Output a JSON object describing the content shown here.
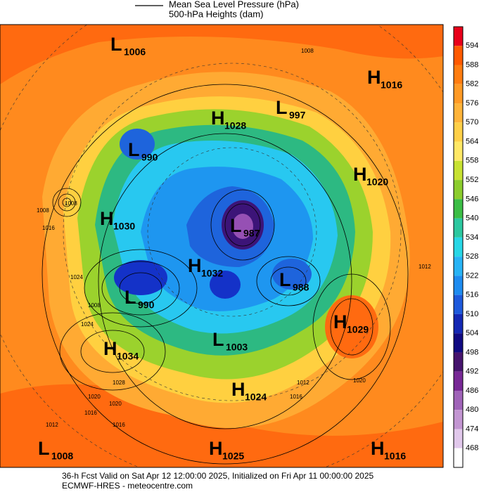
{
  "legend": {
    "pressure": "Mean Sea Level Pressure (hPa)",
    "heights": "500-hPa Heights (dam)"
  },
  "colorbar": {
    "labels": [
      594,
      588,
      582,
      576,
      570,
      564,
      558,
      552,
      546,
      540,
      534,
      528,
      522,
      516,
      510,
      504,
      498,
      492,
      486,
      480,
      474,
      468
    ]
  },
  "centers": [
    {
      "type": "L",
      "value": 1006
    },
    {
      "type": "L",
      "value": 997
    },
    {
      "type": "H",
      "value": 1028
    },
    {
      "type": "H",
      "value": 1016
    },
    {
      "type": "L",
      "value": 990
    },
    {
      "type": "H",
      "value": 1020
    },
    {
      "type": "H",
      "value": 1030
    },
    {
      "type": "L",
      "value": 987
    },
    {
      "type": "H",
      "value": 1032
    },
    {
      "type": "L",
      "value": 988
    },
    {
      "type": "L",
      "value": 990
    },
    {
      "type": "H",
      "value": 1029
    },
    {
      "type": "L",
      "value": 1003
    },
    {
      "type": "H",
      "value": 1034
    },
    {
      "type": "H",
      "value": 1024
    },
    {
      "type": "L",
      "value": 1008
    },
    {
      "type": "H",
      "value": 1025
    },
    {
      "type": "H",
      "value": 1016
    }
  ],
  "contour_labels": [
    "1008",
    "1016",
    "1024",
    "1008",
    "1024",
    "1028",
    "1020",
    "1020",
    "1016",
    "1012",
    "1016",
    "1020",
    "1012",
    "1016",
    "1008",
    "1012",
    "1008"
  ],
  "footer": {
    "line1": "36-h Fcst Valid on Sat Apr 12 12:00:00 2025, Initialized on Fri Apr 11 00:00:00 2025",
    "line2": "ECMWF-HRES - meteocentre.com"
  }
}
